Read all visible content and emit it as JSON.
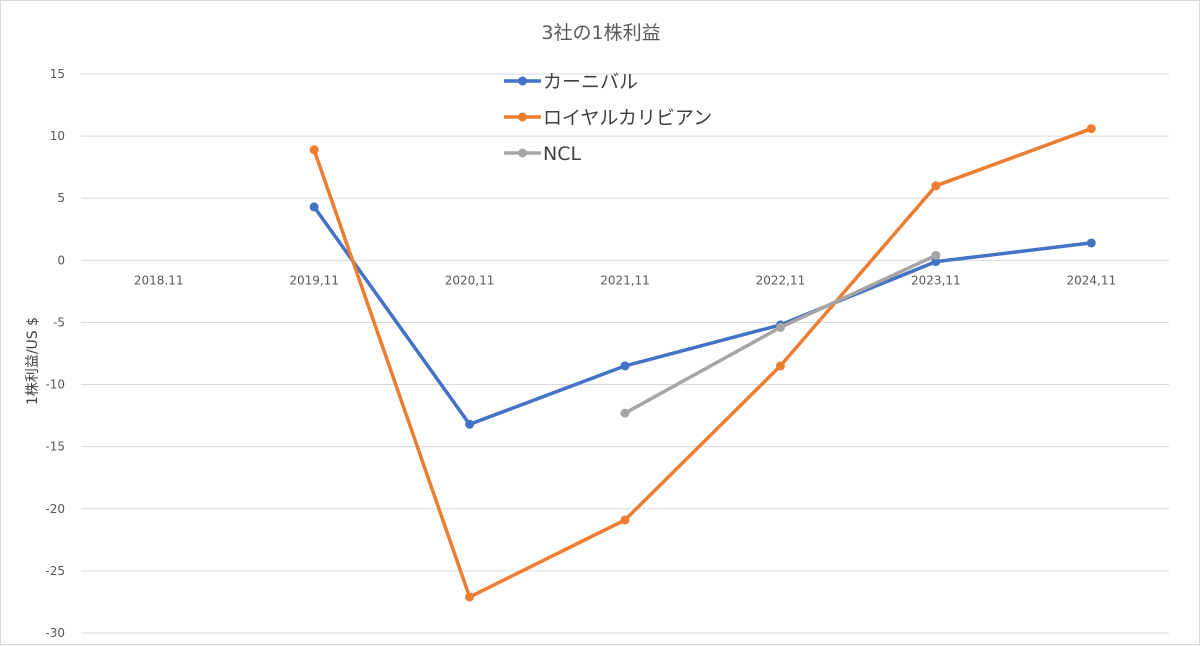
{
  "chart_data": {
    "type": "line",
    "title": "3社の1株利益",
    "xlabel": "",
    "ylabel": "1株利益/US $",
    "categories": [
      "2018.11",
      "2019,11",
      "2020,11",
      "2021,11",
      "2022,11",
      "2023,11",
      "2024,11"
    ],
    "yticks": [
      "15",
      "10",
      "5",
      "0",
      "-5",
      "-10",
      "-15",
      "-20",
      "-25",
      "-30"
    ],
    "ylim": [
      -30,
      15
    ],
    "grid": true,
    "legend_position": "top-center",
    "series": [
      {
        "name": "カーニバル",
        "color": "#4472C4",
        "values": [
          null,
          4.3,
          -13.2,
          -8.5,
          -5.2,
          -0.1,
          1.4
        ]
      },
      {
        "name": "ロイヤルカリビアン",
        "color": "#ED7D31",
        "values": [
          null,
          8.9,
          -27.1,
          -20.9,
          -8.5,
          6.0,
          10.6
        ]
      },
      {
        "name": "NCL",
        "color": "#A5A5A5",
        "values": [
          null,
          null,
          null,
          -12.3,
          -5.4,
          0.4,
          null
        ]
      }
    ]
  }
}
